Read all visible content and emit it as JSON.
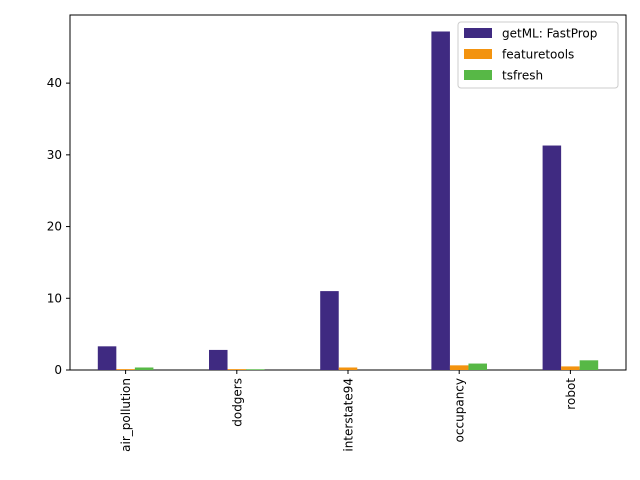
{
  "chart_data": {
    "type": "bar",
    "title": "",
    "xlabel": "",
    "ylabel": "",
    "categories": [
      "air_pollution",
      "dodgers",
      "interstate94",
      "occupancy",
      "robot"
    ],
    "series": [
      {
        "name": "getML: FastProp",
        "color": "#3f2a81",
        "values": [
          3.3,
          2.8,
          11.0,
          47.2,
          31.3
        ]
      },
      {
        "name": "featuretools",
        "color": "#f3930f",
        "values": [
          0.12,
          0.12,
          0.35,
          0.65,
          0.5
        ]
      },
      {
        "name": "tsfresh",
        "color": "#57b846",
        "values": [
          0.35,
          0.1,
          0.0,
          0.9,
          1.35
        ]
      }
    ],
    "ylim": [
      0,
      49.5
    ],
    "yticks": [
      0,
      10,
      20,
      30,
      40
    ],
    "grid": false,
    "legend_position": "top-right"
  }
}
